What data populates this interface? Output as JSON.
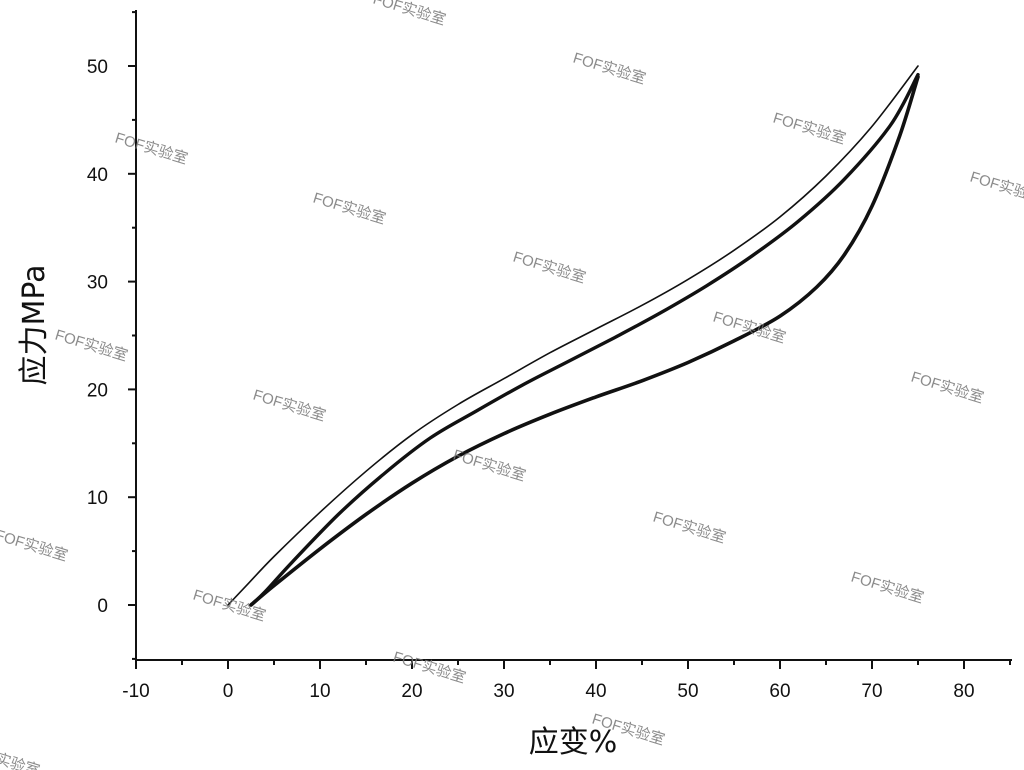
{
  "chart_data": {
    "type": "line",
    "title": "",
    "xlabel": "应变%",
    "ylabel": "应力MPa",
    "xlim": [
      -10,
      85
    ],
    "ylim": [
      -5,
      55
    ],
    "xticks": [
      -10,
      0,
      10,
      20,
      30,
      40,
      50,
      60,
      70,
      80
    ],
    "yticks": [
      0,
      10,
      20,
      30,
      40,
      50
    ],
    "grid": false,
    "legend": "none",
    "line_color": "#111111",
    "series": [
      {
        "x": [
          0,
          2,
          5,
          10,
          15,
          20,
          25,
          30,
          35,
          40,
          45,
          50,
          55,
          60,
          65,
          70,
          75
        ],
        "y": [
          0,
          1.8,
          4.5,
          8.6,
          12.4,
          15.8,
          18.6,
          21.0,
          23.4,
          25.6,
          27.8,
          30.2,
          32.9,
          36.0,
          39.8,
          44.4,
          50.0
        ]
      },
      {
        "x": [
          2.5,
          4,
          7,
          12,
          17,
          22,
          27,
          32,
          37,
          42,
          47,
          52,
          57,
          62,
          67,
          72,
          75
        ],
        "y": [
          0,
          1.2,
          4.0,
          8.4,
          12.2,
          15.5,
          18.0,
          20.4,
          22.6,
          24.8,
          27.1,
          29.6,
          32.4,
          35.6,
          39.5,
          44.5,
          49.2
        ]
      },
      {
        "x": [
          75,
          73,
          70,
          67,
          64,
          60,
          55,
          50,
          45,
          40,
          35,
          30,
          25,
          20,
          15,
          10,
          5,
          2.5
        ],
        "y": [
          49.0,
          43.5,
          37.0,
          32.5,
          29.5,
          26.8,
          24.5,
          22.5,
          20.8,
          19.3,
          17.7,
          15.9,
          13.8,
          11.3,
          8.4,
          5.2,
          1.8,
          0
        ]
      }
    ]
  },
  "watermark": "FOF实验室"
}
